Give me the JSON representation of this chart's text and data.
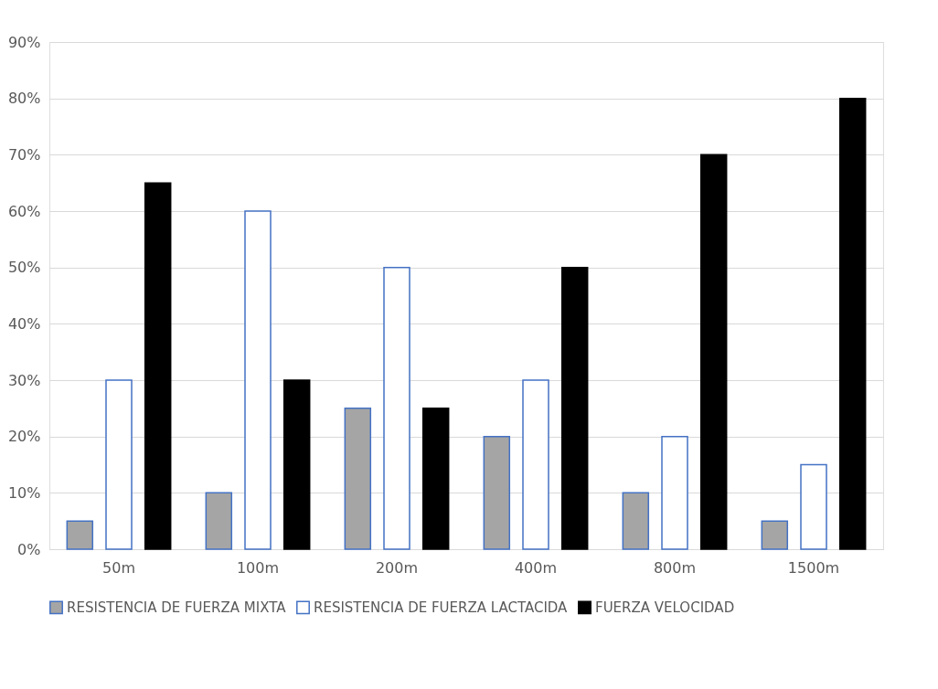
{
  "chart_data": {
    "type": "bar",
    "categories": [
      "50m",
      "100m",
      "200m",
      "400m",
      "800m",
      "1500m"
    ],
    "series": [
      {
        "name": "RESISTENCIA DE FUERZA MIXTA",
        "color": "#a5a5a5",
        "values": [
          5,
          10,
          25,
          20,
          10,
          5
        ]
      },
      {
        "name": "RESISTENCIA DE FUERZA LACTACIDA",
        "color": "#ffffff",
        "values": [
          30,
          60,
          50,
          30,
          20,
          15
        ]
      },
      {
        "name": "FUERZA VELOCIDAD",
        "color": "#000000",
        "values": [
          65,
          30,
          25,
          50,
          70,
          80
        ]
      }
    ],
    "ylim": [
      0,
      90
    ],
    "yticks": [
      {
        "value": 0,
        "label": "0%"
      },
      {
        "value": 10,
        "label": "10%"
      },
      {
        "value": 20,
        "label": "20%"
      },
      {
        "value": 30,
        "label": "30%"
      },
      {
        "value": 40,
        "label": "40%"
      },
      {
        "value": 50,
        "label": "50%"
      },
      {
        "value": 60,
        "label": "60%"
      },
      {
        "value": 70,
        "label": "70%"
      },
      {
        "value": 80,
        "label": "80%"
      },
      {
        "value": 90,
        "label": "90%"
      }
    ],
    "grid": "y",
    "legend": "bottom"
  }
}
